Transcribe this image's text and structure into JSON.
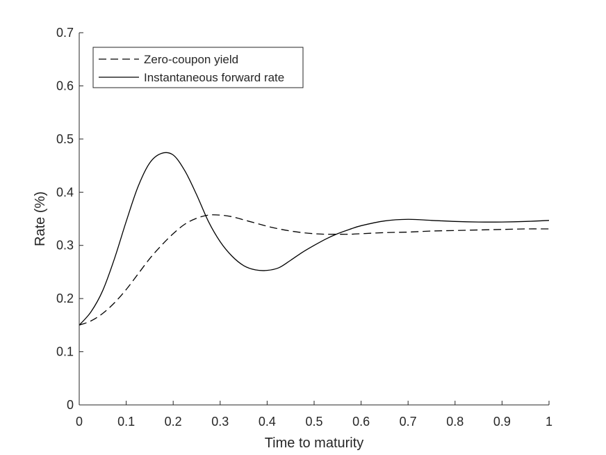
{
  "chart_data": {
    "type": "line",
    "title": "",
    "xlabel": "Time to maturity",
    "ylabel": "Rate (%)",
    "xlim": [
      0,
      1
    ],
    "ylim": [
      0,
      0.7
    ],
    "xticks": [
      "0",
      "0.1",
      "0.2",
      "0.3",
      "0.4",
      "0.5",
      "0.6",
      "0.7",
      "0.8",
      "0.9",
      "1"
    ],
    "yticks": [
      "0",
      "0.1",
      "0.2",
      "0.3",
      "0.4",
      "0.5",
      "0.6",
      "0.7"
    ],
    "grid": false,
    "legend_position": "top-left",
    "x": [
      0,
      0.025,
      0.05,
      0.075,
      0.1,
      0.125,
      0.15,
      0.175,
      0.2,
      0.225,
      0.25,
      0.275,
      0.3,
      0.325,
      0.35,
      0.375,
      0.4,
      0.425,
      0.45,
      0.475,
      0.5,
      0.525,
      0.55,
      0.575,
      0.6,
      0.65,
      0.7,
      0.75,
      0.8,
      0.85,
      0.9,
      0.95,
      1.0
    ],
    "series": [
      {
        "name": "Zero-coupon yield",
        "style": "dashed",
        "color": "#000000",
        "values": [
          0.15,
          0.158,
          0.172,
          0.192,
          0.217,
          0.246,
          0.275,
          0.3,
          0.322,
          0.34,
          0.351,
          0.357,
          0.357,
          0.354,
          0.348,
          0.342,
          0.336,
          0.331,
          0.327,
          0.324,
          0.322,
          0.321,
          0.321,
          0.321,
          0.322,
          0.324,
          0.325,
          0.327,
          0.328,
          0.329,
          0.33,
          0.331,
          0.331
        ]
      },
      {
        "name": "Instantaneous forward rate",
        "style": "solid",
        "color": "#000000",
        "values": [
          0.15,
          0.175,
          0.215,
          0.275,
          0.345,
          0.41,
          0.455,
          0.473,
          0.47,
          0.44,
          0.395,
          0.345,
          0.307,
          0.28,
          0.262,
          0.254,
          0.253,
          0.258,
          0.272,
          0.287,
          0.3,
          0.312,
          0.322,
          0.33,
          0.337,
          0.346,
          0.349,
          0.347,
          0.345,
          0.344,
          0.344,
          0.345,
          0.347
        ]
      }
    ]
  }
}
